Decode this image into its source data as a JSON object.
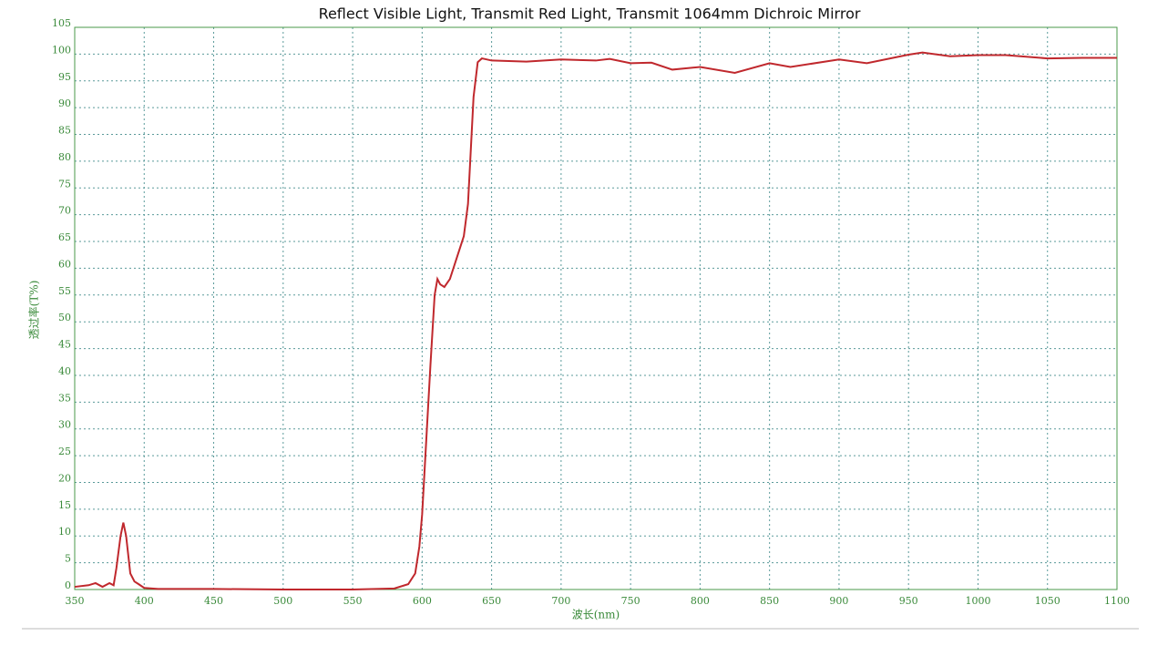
{
  "chart_data": {
    "type": "line",
    "title": "Reflect Visible Light, Transmit Red Light, Transmit 1064mm Dichroic Mirror",
    "x_label": "波长(nm)",
    "y_label": "透过率(T%)",
    "xlim": [
      350,
      1100
    ],
    "ylim": [
      0,
      105
    ],
    "xticks": [
      350,
      400,
      450,
      500,
      550,
      600,
      650,
      700,
      750,
      800,
      850,
      900,
      950,
      1000,
      1050,
      1100
    ],
    "yticks": [
      0,
      5,
      10,
      15,
      20,
      25,
      30,
      35,
      40,
      45,
      50,
      55,
      60,
      65,
      70,
      75,
      80,
      85,
      90,
      95,
      100,
      105
    ],
    "grid": true,
    "series": [
      {
        "name": "T%",
        "color": "#c0282d",
        "x": [
          350,
          360,
          365,
          370,
          375,
          378,
          380,
          383,
          385,
          387,
          390,
          393,
          396,
          400,
          410,
          450,
          500,
          550,
          580,
          590,
          595,
          598,
          600,
          603,
          606,
          609,
          611,
          613,
          616,
          620,
          625,
          630,
          633,
          635,
          637,
          640,
          643,
          650,
          675,
          700,
          725,
          735,
          750,
          765,
          780,
          800,
          825,
          850,
          865,
          900,
          920,
          950,
          960,
          980,
          1000,
          1020,
          1050,
          1075,
          1100
        ],
        "values": [
          0.5,
          0.8,
          1.2,
          0.5,
          1.2,
          0.8,
          4,
          10,
          12.5,
          10,
          3,
          1.5,
          1,
          0.3,
          0.1,
          0.1,
          0,
          0,
          0.2,
          1,
          3,
          8,
          14,
          28,
          42,
          55,
          58,
          57,
          56.5,
          58,
          62,
          66,
          72,
          82,
          92,
          98.5,
          99.2,
          98.8,
          98.6,
          99,
          98.8,
          99.1,
          98.3,
          98.4,
          97.1,
          97.6,
          96.5,
          98.3,
          97.6,
          99,
          98.3,
          99.9,
          100.3,
          99.6,
          99.8,
          99.8,
          99.2,
          99.3,
          99.3
        ]
      }
    ]
  }
}
